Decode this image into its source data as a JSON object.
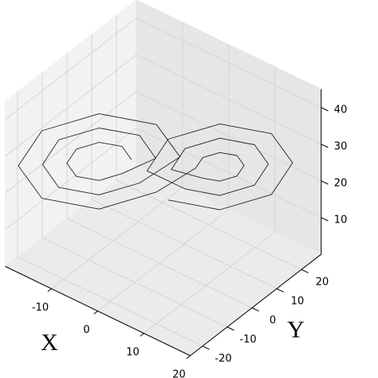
{
  "chart_data": {
    "type": "line3d",
    "xlabel": "X",
    "ylabel": "Y",
    "xlim": [
      -20,
      20
    ],
    "ylim": [
      -25,
      28
    ],
    "zlim": [
      0,
      45
    ],
    "xticks": [
      -10,
      0,
      10,
      20
    ],
    "yticks": [
      -20,
      -10,
      0,
      10,
      20
    ],
    "zticks": [
      10,
      20,
      30,
      40
    ],
    "color": "#000000",
    "grid": true,
    "x": [
      -4.5,
      -5.7,
      -8.5,
      -11.3,
      -12.5,
      -11.3,
      -8.5,
      -5.7,
      -1.5,
      -3.5,
      -8.5,
      -13.5,
      -15.5,
      -13.5,
      -8.5,
      -3.5,
      1.5,
      -1.4,
      -8.5,
      -15.6,
      -18.5,
      -15.6,
      -8.5,
      -1.4,
      5.5,
      6.4,
      8.5,
      10.6,
      11.5,
      10.6,
      8.5,
      6.4,
      2.5,
      4.2,
      8.5,
      12.8,
      14.5,
      12.8,
      8.5,
      4.2,
      -0.5,
      2.1,
      8.5,
      14.9,
      17.5,
      14.9,
      8.5,
      2.1
    ],
    "y": [
      -2.9,
      -4.5,
      -8.5,
      -12.5,
      -14.1,
      -12.5,
      -8.5,
      -4.5,
      1.3,
      -1.5,
      -8.5,
      -15.5,
      -18.3,
      -15.5,
      -8.5,
      -1.5,
      5.5,
      1.4,
      -8.5,
      -18.4,
      -22.5,
      -18.4,
      -8.5,
      1.4,
      4.3,
      5.5,
      8.5,
      11.5,
      12.7,
      11.5,
      8.5,
      5.5,
      0.1,
      2.5,
      8.5,
      14.5,
      16.9,
      14.5,
      8.5,
      2.5,
      -4.1,
      -0.4,
      8.5,
      17.4,
      21.1,
      17.4,
      8.5,
      -0.4
    ],
    "z": [
      27,
      30.7,
      32.2,
      30.7,
      27,
      23.3,
      21.8,
      23.3,
      27,
      33.5,
      36.1,
      33.5,
      27,
      20.5,
      17.9,
      20.5,
      27,
      36.2,
      40,
      36.2,
      27,
      17.8,
      14,
      17.8,
      27,
      29.8,
      30.9,
      29.8,
      27,
      24.2,
      23.1,
      24.2,
      27,
      32.5,
      34.8,
      32.5,
      27,
      21.5,
      19.2,
      21.5,
      27,
      35.3,
      38.7,
      35.3,
      27,
      18.7,
      15.3,
      18.7
    ]
  }
}
